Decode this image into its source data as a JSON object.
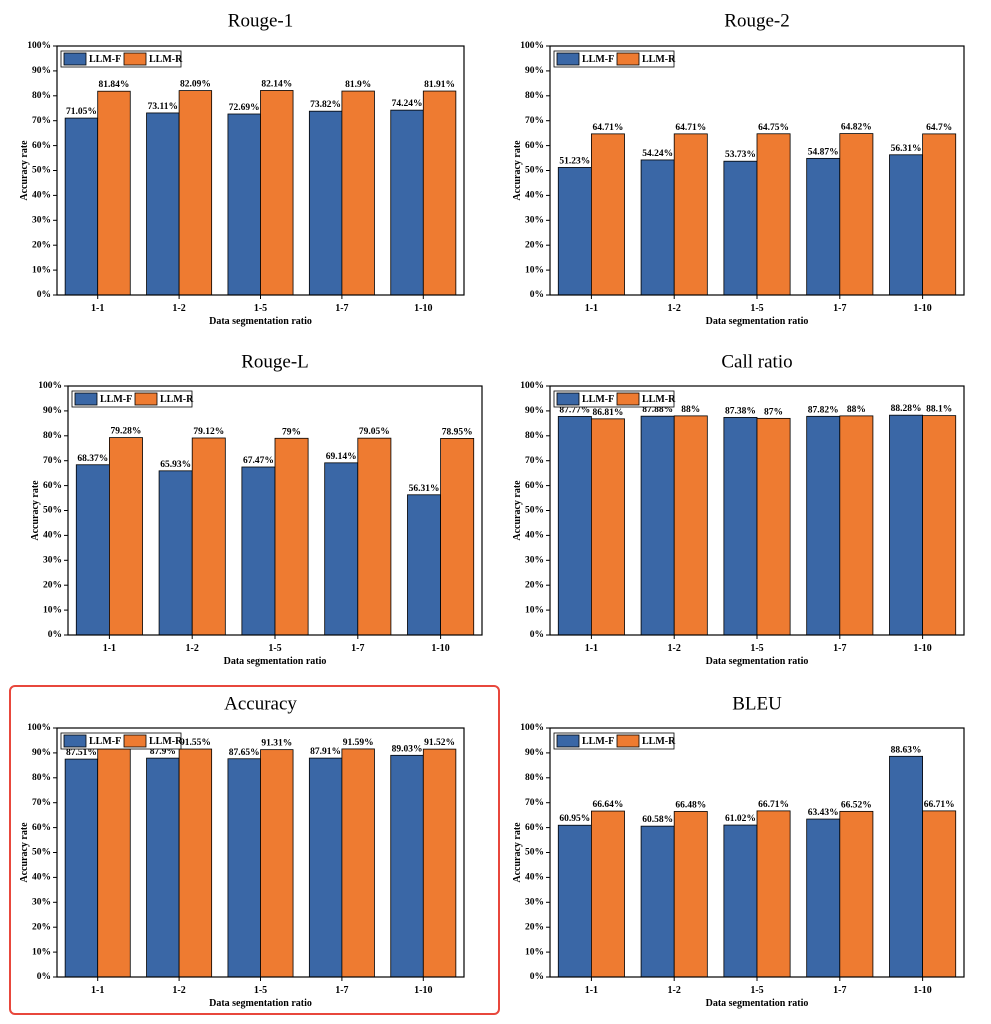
{
  "highlight_color": "#e8473c",
  "colors": {
    "llm_f": "#3a67a6",
    "llm_r": "#ee7b31"
  },
  "chart_data": [
    {
      "type": "bar",
      "title": "Rouge-1",
      "xlabel": "Data segmentation ratio",
      "ylabel": "Accuracy rate",
      "ylim": [
        0,
        100
      ],
      "yticks": [
        "0%",
        "10%",
        "20%",
        "30%",
        "40%",
        "50%",
        "60%",
        "70%",
        "80%",
        "90%",
        "100%"
      ],
      "legend": "top-left",
      "categories": [
        "1-1",
        "1-2",
        "1-5",
        "1-7",
        "1-10"
      ],
      "series": [
        {
          "name": "LLM-F",
          "values": [
            71.05,
            73.11,
            72.69,
            73.82,
            74.24
          ],
          "labels": [
            "71.05%",
            "73.11%",
            "72.69%",
            "73.82%",
            "74.24%"
          ]
        },
        {
          "name": "LLM-R",
          "values": [
            81.84,
            82.09,
            82.14,
            81.9,
            81.91
          ],
          "labels": [
            "81.84%",
            "82.09%",
            "82.14%",
            "81.9%",
            "81.91%"
          ]
        }
      ]
    },
    {
      "type": "bar",
      "title": "Rouge-2",
      "xlabel": "Data segmentation ratio",
      "ylabel": "Accuracy rate",
      "ylim": [
        0,
        100
      ],
      "yticks": [
        "0%",
        "10%",
        "20%",
        "30%",
        "40%",
        "50%",
        "60%",
        "70%",
        "80%",
        "90%",
        "100%"
      ],
      "legend": "top-left",
      "categories": [
        "1-1",
        "1-2",
        "1-5",
        "1-7",
        "1-10"
      ],
      "series": [
        {
          "name": "LLM-F",
          "values": [
            51.23,
            54.24,
            53.73,
            54.87,
            56.31
          ],
          "labels": [
            "51.23%",
            "54.24%",
            "53.73%",
            "54.87%",
            "56.31%"
          ]
        },
        {
          "name": "LLM-R",
          "values": [
            64.71,
            64.71,
            64.75,
            64.82,
            64.7
          ],
          "labels": [
            "64.71%",
            "64.71%",
            "64.75%",
            "64.82%",
            "64.7%"
          ]
        }
      ]
    },
    {
      "type": "bar",
      "title": "Rouge-L",
      "xlabel": "Data segmentation ratio",
      "ylabel": "Accuracy rate",
      "ylim": [
        0,
        100
      ],
      "yticks": [
        "0%",
        "10%",
        "20%",
        "30%",
        "40%",
        "50%",
        "60%",
        "70%",
        "80%",
        "90%",
        "100%"
      ],
      "legend": "top-left",
      "categories": [
        "1-1",
        "1-2",
        "1-5",
        "1-7",
        "1-10"
      ],
      "series": [
        {
          "name": "LLM-F",
          "values": [
            68.37,
            65.93,
            67.47,
            69.14,
            56.31
          ],
          "labels": [
            "68.37%",
            "65.93%",
            "67.47%",
            "69.14%",
            "56.31%"
          ]
        },
        {
          "name": "LLM-R",
          "values": [
            79.28,
            79.12,
            79,
            79.05,
            78.95
          ],
          "labels": [
            "79.28%",
            "79.12%",
            "79%",
            "79.05%",
            "78.95%"
          ]
        }
      ]
    },
    {
      "type": "bar",
      "title": "Call ratio",
      "xlabel": "Data segmentation ratio",
      "ylabel": "Accuracy rate",
      "ylim": [
        0,
        100
      ],
      "yticks": [
        "0%",
        "10%",
        "20%",
        "30%",
        "40%",
        "50%",
        "60%",
        "70%",
        "80%",
        "90%",
        "100%"
      ],
      "legend": "top-left",
      "categories": [
        "1-1",
        "1-2",
        "1-5",
        "1-7",
        "1-10"
      ],
      "series": [
        {
          "name": "LLM-F",
          "values": [
            87.77,
            87.88,
            87.38,
            87.82,
            88.28
          ],
          "labels": [
            "87.77%",
            "87.88%",
            "87.38%",
            "87.82%",
            "88.28%"
          ]
        },
        {
          "name": "LLM-R",
          "values": [
            86.81,
            88,
            87,
            88,
            88.1
          ],
          "labels": [
            "86.81%",
            "88%",
            "87%",
            "88%",
            "88.1%"
          ]
        }
      ]
    },
    {
      "type": "bar",
      "title": "Accuracy",
      "xlabel": "Data segmentation ratio",
      "ylabel": "Accuracy rate",
      "ylim": [
        0,
        100
      ],
      "yticks": [
        "0%",
        "10%",
        "20%",
        "30%",
        "40%",
        "50%",
        "60%",
        "70%",
        "80%",
        "90%",
        "100%"
      ],
      "legend": "top-left",
      "highlighted": true,
      "categories": [
        "1-1",
        "1-2",
        "1-5",
        "1-7",
        "1-10"
      ],
      "series": [
        {
          "name": "LLM-F",
          "values": [
            87.51,
            87.9,
            87.65,
            87.91,
            89.03
          ],
          "labels": [
            "87.51%",
            "87.9%",
            "87.65%",
            "87.91%",
            "89.03%"
          ]
        },
        {
          "name": "LLM-R",
          "values": [
            91.55,
            91.55,
            91.31,
            91.59,
            91.52
          ],
          "labels": [
            "",
            "91.55%",
            "91.31%",
            "91.59%",
            "91.52%"
          ]
        }
      ]
    },
    {
      "type": "bar",
      "title": "BLEU",
      "xlabel": "Data segmentation ratio",
      "ylabel": "Accuracy rate",
      "ylim": [
        0,
        100
      ],
      "yticks": [
        "0%",
        "10%",
        "20%",
        "30%",
        "40%",
        "50%",
        "60%",
        "70%",
        "80%",
        "90%",
        "100%"
      ],
      "legend": "top-left",
      "categories": [
        "1-1",
        "1-2",
        "1-5",
        "1-7",
        "1-10"
      ],
      "series": [
        {
          "name": "LLM-F",
          "values": [
            60.95,
            60.58,
            61.02,
            63.43,
            88.63
          ],
          "labels": [
            "60.95%",
            "60.58%",
            "61.02%",
            "63.43%",
            "88.63%"
          ]
        },
        {
          "name": "LLM-R",
          "values": [
            66.64,
            66.48,
            66.71,
            66.52,
            66.71
          ],
          "labels": [
            "66.64%",
            "66.48%",
            "66.71%",
            "66.52%",
            "66.71%"
          ]
        }
      ]
    }
  ]
}
